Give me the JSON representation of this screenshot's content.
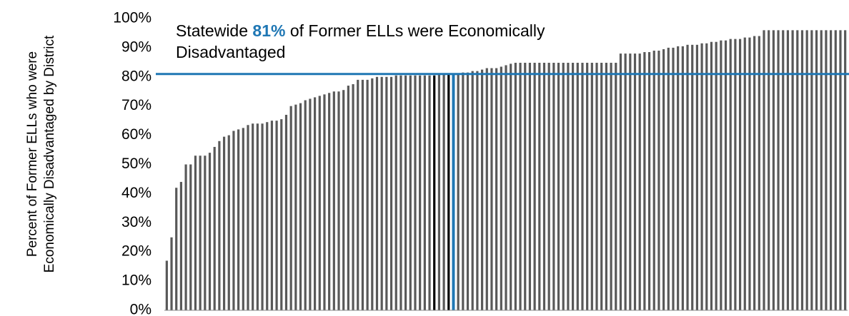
{
  "chart_data": {
    "type": "bar",
    "y_label": "Percent of Former ELLs who were Economically Disadvantaged by District",
    "annotation_prefix": "Statewide ",
    "annotation_suffix": " of Former ELLs were Economically Disadvantaged",
    "reference_line": {
      "value": 81,
      "label": "81%",
      "color": "#1f77b4"
    },
    "color": "#595959",
    "highlights": [
      {
        "index": 56,
        "color": "#000000"
      },
      {
        "index": 59,
        "color": "#000000"
      },
      {
        "index": 60,
        "color": "#1f77b4"
      }
    ],
    "values": [
      17,
      25,
      42,
      44,
      50,
      50,
      53,
      53,
      53,
      54,
      56,
      58,
      59.5,
      60,
      61.5,
      62,
      62.5,
      63.5,
      64,
      64,
      64,
      64.5,
      65,
      65,
      65.5,
      67,
      70,
      70.5,
      71,
      72,
      72.5,
      73,
      73.5,
      74,
      74.5,
      75,
      75,
      75.5,
      77,
      77.5,
      79,
      79,
      79,
      79.5,
      80,
      80,
      80,
      80,
      80.5,
      80.5,
      80.5,
      80.5,
      80.5,
      80.5,
      80.5,
      80.5,
      80.5,
      81,
      81,
      81,
      81,
      81,
      81.5,
      81.5,
      82,
      82,
      82.5,
      83,
      83,
      83,
      83.5,
      84,
      84.5,
      85,
      85.5,
      86,
      86,
      86,
      86.5,
      86.5,
      86.5,
      86.5,
      87,
      87,
      87,
      87,
      87,
      87,
      87,
      87,
      87.5,
      87.5,
      87.5,
      87.5,
      87.5,
      88,
      88,
      88,
      88,
      88,
      88.5,
      88.5,
      89,
      89,
      89.5,
      90,
      90,
      90.5,
      90.5,
      91,
      91,
      91,
      91.5,
      91.5,
      92,
      92,
      92.5,
      92.5,
      93,
      93,
      93,
      93.5,
      93.5,
      94,
      94,
      96,
      96,
      96,
      96,
      96,
      96,
      96,
      96,
      96,
      96,
      96,
      96,
      96,
      96,
      96,
      96,
      96,
      96
    ],
    "ylim": [
      0,
      100
    ],
    "yticks": [
      {
        "value": 0,
        "label": "0%"
      },
      {
        "value": 10,
        "label": "10%"
      },
      {
        "value": 20,
        "label": "20%"
      },
      {
        "value": 30,
        "label": "30%"
      },
      {
        "value": 40,
        "label": "40%"
      },
      {
        "value": 50,
        "label": "50%"
      },
      {
        "value": 60,
        "label": "60%"
      },
      {
        "value": 70,
        "label": "70%"
      },
      {
        "value": 80,
        "label": "80%"
      },
      {
        "value": 90,
        "label": "90%"
      },
      {
        "value": 100,
        "label": "100%"
      }
    ],
    "grid": false
  }
}
